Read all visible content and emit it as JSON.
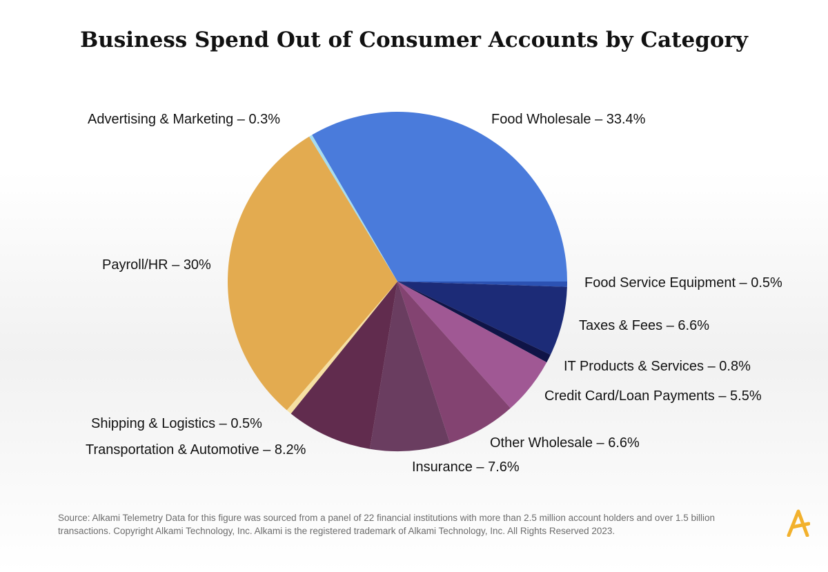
{
  "chart_data": {
    "type": "pie",
    "title": "Business Spend Out of Consumer Accounts by Category",
    "slices": [
      {
        "label": "Food Wholesale – 33.4%",
        "category": "Food Wholesale",
        "value": 33.4,
        "color": "#4a7bdb"
      },
      {
        "label": "Food Service Equipment – 0.5%",
        "category": "Food Service Equipment",
        "value": 0.5,
        "color": "#2c52b3"
      },
      {
        "label": "Taxes & Fees – 6.6%",
        "category": "Taxes & Fees",
        "value": 6.6,
        "color": "#1c2b77"
      },
      {
        "label": "IT Products & Services – 0.8%",
        "category": "IT Products & Services",
        "value": 0.8,
        "color": "#0f1447"
      },
      {
        "label": "Credit Card/Loan Payments – 5.5%",
        "category": "Credit Card/Loan Payments",
        "value": 5.5,
        "color": "#a05894"
      },
      {
        "label": "Other Wholesale – 6.6%",
        "category": "Other Wholesale",
        "value": 6.6,
        "color": "#834371"
      },
      {
        "label": "Insurance – 7.6%",
        "category": "Insurance",
        "value": 7.6,
        "color": "#6a3d60"
      },
      {
        "label": "Transportation & Automotive – 8.2%",
        "category": "Transportation & Automotive",
        "value": 8.2,
        "color": "#612c4e"
      },
      {
        "label": "Shipping & Logistics – 0.5%",
        "category": "Shipping & Logistics",
        "value": 0.5,
        "color": "#f6e0a3"
      },
      {
        "label": "Payroll/HR – 30%",
        "category": "Payroll/HR",
        "value": 30,
        "color": "#e3ab50"
      },
      {
        "label": "Advertising & Marketing – 0.3%",
        "category": "Advertising & Marketing",
        "value": 0.3,
        "color": "#a6dcef"
      }
    ]
  },
  "footer": {
    "source_text": "Source: Alkami Telemetry Data for this figure was sourced from a panel of 22 financial institutions with more than 2.5 million account holders and over 1.5 billion transactions. Copyright Alkami Technology, Inc. Alkami is the registered trademark of Alkami Technology, Inc. All Rights Reserved 2023.",
    "logo_color": "#f2b12d"
  }
}
